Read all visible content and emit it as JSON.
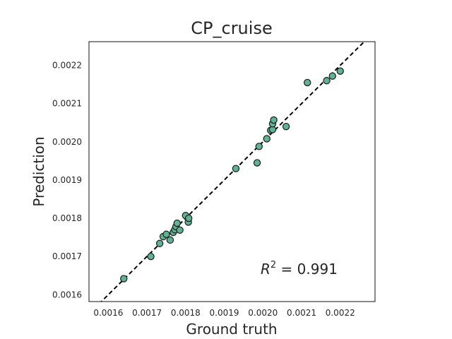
{
  "chart_data": {
    "type": "scatter",
    "title": "CP_cruise",
    "xlabel": "Ground truth",
    "ylabel": "Prediction",
    "xlim": [
      0.00155,
      0.00229
    ],
    "ylim": [
      0.001582,
      0.002262
    ],
    "xticks": [
      "0.0016",
      "0.0017",
      "0.0018",
      "0.0019",
      "0.0020",
      "0.0021",
      "0.0022"
    ],
    "yticks": [
      "0.0016",
      "0.0017",
      "0.0018",
      "0.0019",
      "0.0020",
      "0.0021",
      "0.0022"
    ],
    "grid": false,
    "reference_line": {
      "style": "dashed",
      "color": "#000000",
      "from": [
        0.00155,
        0.00155
      ],
      "to": [
        0.00229,
        0.00229
      ]
    },
    "point_color": "#5fb394",
    "point_edge_color": "#1a1a1a",
    "annotation": {
      "prefix": "R",
      "superscript": "2",
      "value": " = 0.991"
    },
    "points": [
      {
        "x": 0.00164,
        "y": 0.001642
      },
      {
        "x": 0.00171,
        "y": 0.0017
      },
      {
        "x": 0.001733,
        "y": 0.001734
      },
      {
        "x": 0.001742,
        "y": 0.001752
      },
      {
        "x": 0.00175,
        "y": 0.001758
      },
      {
        "x": 0.00176,
        "y": 0.001743
      },
      {
        "x": 0.001768,
        "y": 0.001763
      },
      {
        "x": 0.001772,
        "y": 0.00177
      },
      {
        "x": 0.001775,
        "y": 0.001778
      },
      {
        "x": 0.001778,
        "y": 0.001787
      },
      {
        "x": 0.001785,
        "y": 0.001769
      },
      {
        "x": 0.0018,
        "y": 0.001807
      },
      {
        "x": 0.001807,
        "y": 0.00179
      },
      {
        "x": 0.001808,
        "y": 0.0018
      },
      {
        "x": 0.00193,
        "y": 0.00193
      },
      {
        "x": 0.001985,
        "y": 0.001945
      },
      {
        "x": 0.00199,
        "y": 0.001988
      },
      {
        "x": 0.00201,
        "y": 0.002008
      },
      {
        "x": 0.00202,
        "y": 0.00203
      },
      {
        "x": 0.002025,
        "y": 0.002032
      },
      {
        "x": 0.002025,
        "y": 0.002047
      },
      {
        "x": 0.002028,
        "y": 0.002057
      },
      {
        "x": 0.00206,
        "y": 0.00204
      },
      {
        "x": 0.002115,
        "y": 0.002155
      },
      {
        "x": 0.002165,
        "y": 0.00216
      },
      {
        "x": 0.00218,
        "y": 0.002172
      },
      {
        "x": 0.0022,
        "y": 0.002185
      }
    ]
  }
}
